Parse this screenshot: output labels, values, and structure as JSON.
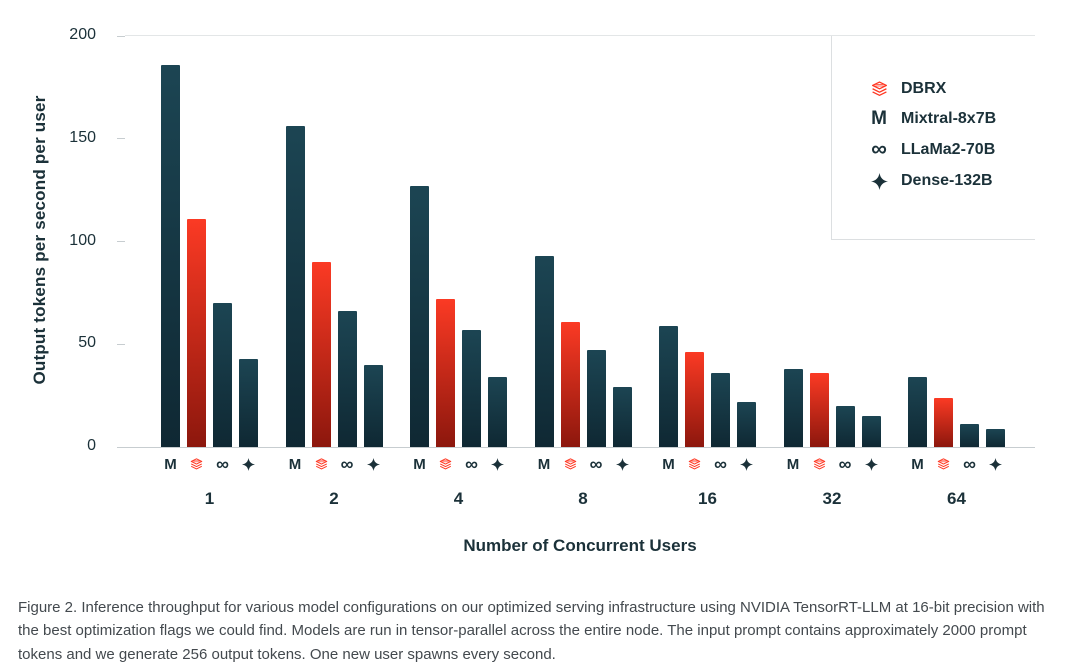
{
  "chart_data": {
    "type": "bar",
    "xlabel": "Number of Concurrent Users",
    "ylabel": "Output tokens per second per user",
    "ylim": [
      0,
      200
    ],
    "yticks": [
      0,
      50,
      100,
      150,
      200
    ],
    "categories": [
      "1",
      "2",
      "4",
      "8",
      "16",
      "32",
      "64"
    ],
    "series": [
      {
        "name": "Mixtral-8x7B",
        "icon": "mixtral-m-icon",
        "color_top": "#1c4553",
        "color_bottom": "#0f2833",
        "values": [
          186,
          156,
          127,
          93,
          59,
          38,
          34
        ]
      },
      {
        "name": "DBRX",
        "icon": "dbrx-stack-icon",
        "color_top": "#fb3a24",
        "color_bottom": "#8c170d",
        "values": [
          111,
          90,
          72,
          61,
          46,
          36,
          24
        ]
      },
      {
        "name": "LLaMa2-70B",
        "icon": "llama-infinity-icon",
        "color_top": "#1c4553",
        "color_bottom": "#0f2833",
        "values": [
          70,
          66,
          57,
          47,
          36,
          20,
          11
        ]
      },
      {
        "name": "Dense-132B",
        "icon": "dense-sparkle-icon",
        "color_top": "#1c4553",
        "color_bottom": "#0f2833",
        "values": [
          43,
          40,
          34,
          29,
          22,
          15,
          9
        ]
      }
    ],
    "legend": [
      {
        "icon": "dbrx-stack-icon",
        "label": "DBRX"
      },
      {
        "icon": "mixtral-m-icon",
        "label": "Mixtral-8x7B"
      },
      {
        "icon": "llama-infinity-icon",
        "label": "LLaMa2-70B"
      },
      {
        "icon": "dense-sparkle-icon",
        "label": "Dense-132B"
      }
    ],
    "legend_position": "top-right",
    "grid": "top-line-only",
    "colors": {
      "accent_red": "#ff3621",
      "dark_navy": "#1b3139",
      "axis_line": "#c7cdd0",
      "caption_text": "#43494e"
    }
  },
  "caption": "Figure 2. Inference throughput for various model configurations on our optimized serving infrastructure using NVIDIA TensorRT-LLM at 16-bit precision with the best optimization flags we could find. Models are run in tensor-parallel across the entire node. The input prompt contains approximately 2000 prompt tokens and we generate 256 output tokens. One new user spawns every second."
}
